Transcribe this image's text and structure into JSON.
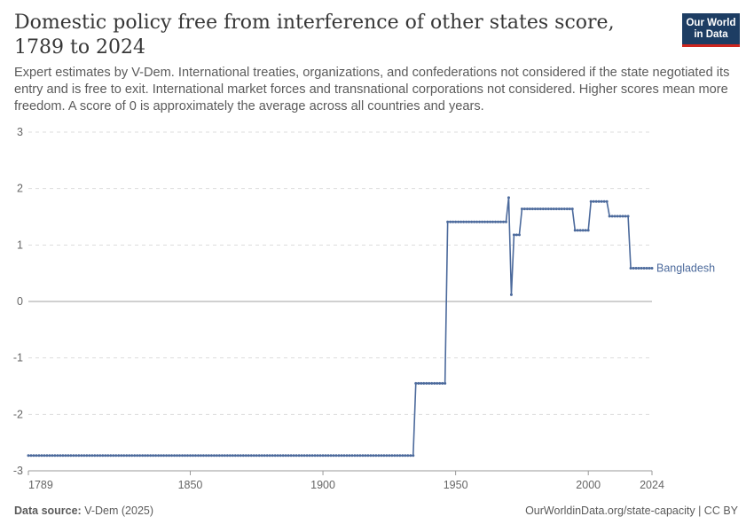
{
  "header": {
    "title": "Domestic policy free from interference of other states score, 1789 to 2024",
    "subtitle": "Expert estimates by V-Dem. International treaties, organizations, and confederations not considered if the state negotiated its entry and is free to exit. International market forces and transnational corporations not considered. Higher scores mean more freedom. A score of 0 is approximately the average across all countries and years.",
    "logo_line1": "Our World",
    "logo_line2": "in Data"
  },
  "footer": {
    "source_label": "Data source:",
    "source_value": "V-Dem (2025)",
    "url_license": "OurWorldinData.org/state-capacity | CC BY"
  },
  "colors": {
    "series": "#4c6a9c",
    "grid": "#dddddd",
    "zero_line": "#a1a1a1"
  },
  "chart_data": {
    "type": "line",
    "title": "Domestic policy free from interference of other states score, 1789 to 2024",
    "xlim": [
      1789,
      2024
    ],
    "ylim": [
      -3,
      3
    ],
    "x_ticks": [
      1789,
      1850,
      1900,
      1950,
      2000,
      2024
    ],
    "y_ticks": [
      3,
      2,
      1,
      0,
      -1,
      -2,
      -3
    ],
    "grid": "horizontal-dashed",
    "series": [
      {
        "name": "Bangladesh",
        "color": "#4c6a9c",
        "points": [
          [
            1789,
            -2.73
          ],
          [
            1934,
            -2.73
          ],
          [
            1935,
            -1.45
          ],
          [
            1946,
            -1.45
          ],
          [
            1947,
            1.41
          ],
          [
            1969,
            1.41
          ],
          [
            1970,
            1.84
          ],
          [
            1971,
            0.12
          ],
          [
            1972,
            1.18
          ],
          [
            1974,
            1.18
          ],
          [
            1975,
            1.64
          ],
          [
            1994,
            1.64
          ],
          [
            1995,
            1.26
          ],
          [
            2000,
            1.26
          ],
          [
            2001,
            1.77
          ],
          [
            2007,
            1.77
          ],
          [
            2008,
            1.51
          ],
          [
            2015,
            1.51
          ],
          [
            2016,
            0.59
          ],
          [
            2024,
            0.59
          ]
        ]
      }
    ]
  }
}
